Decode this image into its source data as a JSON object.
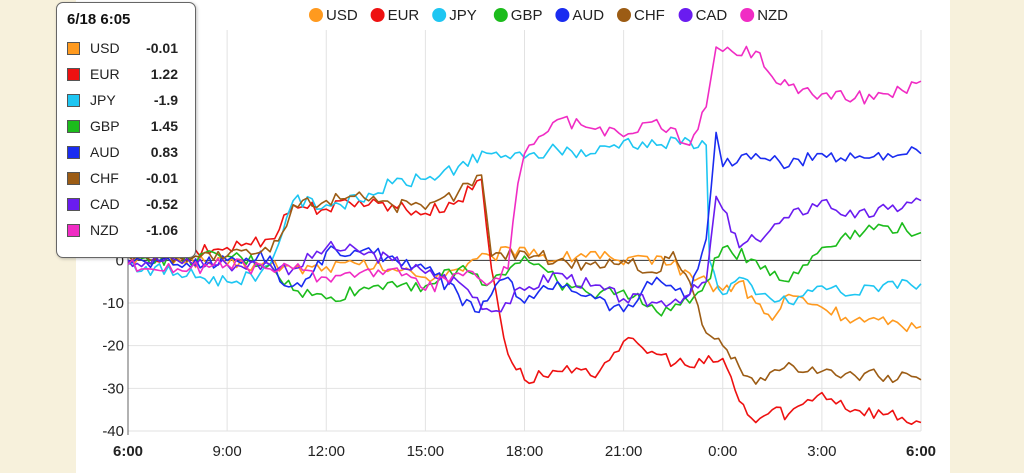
{
  "tooltip": {
    "title": "6/18 6:05",
    "rows": [
      {
        "name": "USD",
        "value": "-0.01",
        "color": "#ff9a1f"
      },
      {
        "name": "EUR",
        "value": "1.22",
        "color": "#ee1111"
      },
      {
        "name": "JPY",
        "value": "-1.9",
        "color": "#1ec6f2"
      },
      {
        "name": "GBP",
        "value": "1.45",
        "color": "#1cbc1c"
      },
      {
        "name": "AUD",
        "value": "0.83",
        "color": "#1a2cf0"
      },
      {
        "name": "CHF",
        "value": "-0.01",
        "color": "#9c5c14"
      },
      {
        "name": "CAD",
        "value": "-0.52",
        "color": "#6a1cf0"
      },
      {
        "name": "NZD",
        "value": "-1.06",
        "color": "#f02cc4"
      }
    ]
  },
  "chart_data": {
    "type": "line",
    "x_ticks": [
      "6:00",
      "9:00",
      "12:00",
      "15:00",
      "18:00",
      "21:00",
      "0:00",
      "3:00",
      "6:00"
    ],
    "x_tick_hours": [
      0,
      3,
      6,
      9,
      12,
      15,
      18,
      21,
      24
    ],
    "y_ticks": [
      -40,
      -30,
      -20,
      -10,
      0
    ],
    "ylim": [
      -40,
      54
    ],
    "xlim": [
      0,
      24
    ],
    "grid": true,
    "legend_position": "top",
    "series": [
      {
        "name": "USD",
        "color": "#ff9a1f",
        "points": [
          [
            0,
            0
          ],
          [
            1.5,
            0.5
          ],
          [
            3,
            -1
          ],
          [
            4.3,
            -1
          ],
          [
            5,
            -2
          ],
          [
            6,
            -1.5
          ],
          [
            7,
            -1
          ],
          [
            8,
            -2
          ],
          [
            9,
            -4
          ],
          [
            10,
            -2
          ],
          [
            11,
            1
          ],
          [
            12,
            3
          ],
          [
            13,
            0
          ],
          [
            14,
            2
          ],
          [
            15,
            -1
          ],
          [
            16,
            1
          ],
          [
            17,
            -3
          ],
          [
            18,
            -7
          ],
          [
            18.5,
            -5
          ],
          [
            19,
            -10
          ],
          [
            19.5,
            -14
          ],
          [
            20,
            -8
          ],
          [
            21,
            -11
          ],
          [
            22,
            -14
          ],
          [
            23,
            -15
          ],
          [
            24,
            -15.5
          ]
        ]
      },
      {
        "name": "EUR",
        "color": "#ee1111",
        "points": [
          [
            0,
            1
          ],
          [
            1.5,
            1
          ],
          [
            3,
            3
          ],
          [
            4.3,
            5
          ],
          [
            5,
            13
          ],
          [
            6,
            12
          ],
          [
            7,
            14
          ],
          [
            8,
            13
          ],
          [
            9,
            11
          ],
          [
            10,
            14
          ],
          [
            10.7,
            19
          ],
          [
            11,
            -2
          ],
          [
            11.5,
            -22
          ],
          [
            12,
            -28
          ],
          [
            13,
            -26
          ],
          [
            14,
            -27
          ],
          [
            15,
            -19
          ],
          [
            16,
            -22
          ],
          [
            17,
            -25
          ],
          [
            18,
            -23
          ],
          [
            18.5,
            -33
          ],
          [
            19,
            -38
          ],
          [
            19.5,
            -35
          ],
          [
            20,
            -36
          ],
          [
            21,
            -31
          ],
          [
            22,
            -35
          ],
          [
            23,
            -36
          ],
          [
            24,
            -38
          ]
        ]
      },
      {
        "name": "JPY",
        "color": "#1ec6f2",
        "points": [
          [
            0,
            -1
          ],
          [
            1.5,
            -3
          ],
          [
            3,
            -5
          ],
          [
            4,
            -3
          ],
          [
            4.3,
            -1
          ],
          [
            4.8,
            10
          ],
          [
            5,
            14
          ],
          [
            6,
            13
          ],
          [
            7,
            14
          ],
          [
            8,
            18
          ],
          [
            9,
            19
          ],
          [
            10,
            22
          ],
          [
            11,
            25
          ],
          [
            12,
            24
          ],
          [
            13,
            26
          ],
          [
            14,
            25
          ],
          [
            15,
            28
          ],
          [
            16,
            27
          ],
          [
            17,
            28
          ],
          [
            17.5,
            27
          ],
          [
            17.6,
            0
          ],
          [
            18,
            -8
          ],
          [
            18.5,
            -4
          ],
          [
            19,
            -8
          ],
          [
            20,
            -10
          ],
          [
            21,
            -6
          ],
          [
            22,
            -8
          ],
          [
            23,
            -5
          ],
          [
            24,
            -5.5
          ]
        ]
      },
      {
        "name": "GBP",
        "color": "#1cbc1c",
        "points": [
          [
            0,
            1
          ],
          [
            1.5,
            0
          ],
          [
            3,
            1
          ],
          [
            4.3,
            -1
          ],
          [
            5,
            -7
          ],
          [
            6,
            -9
          ],
          [
            7,
            -7
          ],
          [
            8,
            -5
          ],
          [
            9,
            -6
          ],
          [
            10,
            -2
          ],
          [
            11,
            -5
          ],
          [
            12,
            1
          ],
          [
            13,
            -5
          ],
          [
            14,
            -8
          ],
          [
            15,
            -7
          ],
          [
            16,
            -12
          ],
          [
            17,
            -10
          ],
          [
            17.5,
            -5
          ],
          [
            18,
            3
          ],
          [
            19,
            0
          ],
          [
            20,
            -5
          ],
          [
            21,
            3
          ],
          [
            22,
            7
          ],
          [
            23,
            8
          ],
          [
            24,
            6.5
          ]
        ]
      },
      {
        "name": "AUD",
        "color": "#1a2cf0",
        "points": [
          [
            0,
            0
          ],
          [
            1.5,
            -1
          ],
          [
            3,
            0
          ],
          [
            4.3,
            1
          ],
          [
            4.6,
            -5
          ],
          [
            5,
            -6
          ],
          [
            5.5,
            -4
          ],
          [
            6,
            2
          ],
          [
            7,
            2
          ],
          [
            8,
            1
          ],
          [
            9,
            -2
          ],
          [
            10,
            -8
          ],
          [
            10.5,
            -12
          ],
          [
            11,
            -8
          ],
          [
            11.5,
            -4
          ],
          [
            12,
            -10
          ],
          [
            13,
            -5
          ],
          [
            14,
            -8
          ],
          [
            15,
            -12
          ],
          [
            16,
            -4
          ],
          [
            17,
            -8
          ],
          [
            17.5,
            5
          ],
          [
            17.8,
            30
          ],
          [
            18,
            22
          ],
          [
            19,
            25
          ],
          [
            20,
            22
          ],
          [
            21,
            25
          ],
          [
            22,
            24
          ],
          [
            23,
            25
          ],
          [
            24,
            25
          ]
        ]
      },
      {
        "name": "CHF",
        "color": "#9c5c14",
        "points": [
          [
            0,
            1
          ],
          [
            1.5,
            1
          ],
          [
            3,
            1
          ],
          [
            4.3,
            2
          ],
          [
            4.8,
            8
          ],
          [
            5,
            13
          ],
          [
            6,
            14
          ],
          [
            7,
            16
          ],
          [
            8,
            13
          ],
          [
            9,
            12
          ],
          [
            10,
            16
          ],
          [
            10.7,
            20
          ],
          [
            11,
            1
          ],
          [
            12,
            2
          ],
          [
            13,
            0
          ],
          [
            14,
            -1
          ],
          [
            15,
            0
          ],
          [
            16,
            -3
          ],
          [
            16.5,
            2
          ],
          [
            17,
            -5
          ],
          [
            17.5,
            -17
          ],
          [
            18,
            -20
          ],
          [
            18.5,
            -25
          ],
          [
            19,
            -29
          ],
          [
            20,
            -24
          ],
          [
            21,
            -26
          ],
          [
            22,
            -27
          ],
          [
            23,
            -27
          ],
          [
            24,
            -28
          ]
        ]
      },
      {
        "name": "CAD",
        "color": "#6a1cf0",
        "points": [
          [
            0,
            0
          ],
          [
            1.5,
            0
          ],
          [
            3,
            -1
          ],
          [
            4.3,
            -1
          ],
          [
            5,
            -2
          ],
          [
            6,
            3
          ],
          [
            7,
            2
          ],
          [
            8,
            0
          ],
          [
            9,
            -3
          ],
          [
            10,
            -5
          ],
          [
            11,
            -12
          ],
          [
            12,
            -7
          ],
          [
            13,
            -3
          ],
          [
            14,
            -6
          ],
          [
            15,
            -9
          ],
          [
            16,
            -10
          ],
          [
            17,
            -8
          ],
          [
            17.5,
            -5
          ],
          [
            17.8,
            15
          ],
          [
            18,
            12
          ],
          [
            18.5,
            3
          ],
          [
            19,
            5
          ],
          [
            20,
            10
          ],
          [
            21,
            14
          ],
          [
            22,
            10
          ],
          [
            23,
            12
          ],
          [
            24,
            14
          ]
        ]
      },
      {
        "name": "NZD",
        "color": "#f02cc4",
        "points": [
          [
            0,
            -1
          ],
          [
            1.5,
            -2
          ],
          [
            3,
            -1
          ],
          [
            4.3,
            -2
          ],
          [
            5,
            -2
          ],
          [
            6,
            -4
          ],
          [
            7,
            -3
          ],
          [
            8,
            -2
          ],
          [
            9,
            -7
          ],
          [
            10,
            -3
          ],
          [
            11,
            -5
          ],
          [
            11.5,
            -2
          ],
          [
            11.8,
            18
          ],
          [
            12,
            25
          ],
          [
            13,
            33
          ],
          [
            14,
            31
          ],
          [
            15,
            29
          ],
          [
            16,
            33
          ],
          [
            17,
            27
          ],
          [
            17.5,
            36
          ],
          [
            17.8,
            50
          ],
          [
            18,
            49
          ],
          [
            19,
            49
          ],
          [
            19.5,
            43
          ],
          [
            20,
            41
          ],
          [
            21,
            39
          ],
          [
            22,
            38
          ],
          [
            23,
            39
          ],
          [
            24,
            42
          ]
        ]
      }
    ]
  }
}
